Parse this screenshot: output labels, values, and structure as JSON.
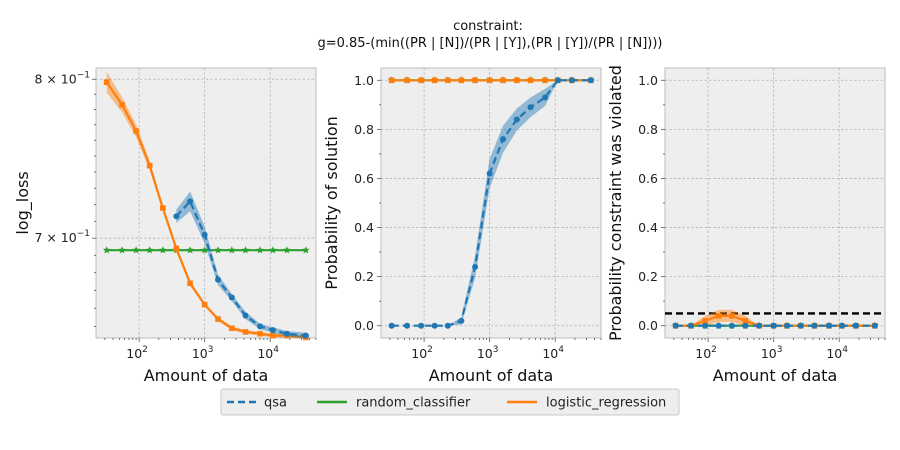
{
  "title_line1": "constraint:",
  "title_line2": "g=0.85-(min((PR | [N])/(PR | [Y]),(PR | [Y])/(PR | [N])))",
  "legend": [
    "qsa",
    "random_classifier",
    "logistic_regression"
  ],
  "colors": {
    "qsa": "#1f77b4",
    "random_classifier": "#2ca02c",
    "logistic_regression": "#ff7f0e",
    "threshold": "#000000"
  },
  "x_ticks": [
    "2",
    "3",
    "4"
  ],
  "x_tick_base": "10",
  "chart_data": [
    {
      "type": "line",
      "xscale": "log",
      "yscale": "log",
      "xlabel": "Amount of data",
      "ylabel": "log_loss",
      "xlim": [
        22,
        50000
      ],
      "ylim": [
        0.6437,
        0.8076
      ],
      "yticks": [
        {
          "value": 0.8,
          "mantissa": "8",
          "base": "10",
          "exp": "−1"
        },
        {
          "value": 0.7,
          "mantissa": "7",
          "base": "10",
          "exp": "−1"
        }
      ],
      "x": [
        32,
        55,
        90,
        145,
        230,
        370,
        600,
        1000,
        1600,
        2600,
        4200,
        7000,
        11000,
        18000,
        35000
      ],
      "series": [
        {
          "name": "qsa",
          "style": "dashed",
          "marker": "circle",
          "values": [
            null,
            null,
            null,
            null,
            null,
            0.713,
            0.722,
            0.702,
            0.676,
            0.666,
            0.656,
            0.65,
            0.648,
            0.646,
            0.645
          ],
          "band": [
            null,
            null,
            null,
            null,
            null,
            0.004,
            0.006,
            0.005,
            0.003,
            0.002,
            0.002,
            0.0015,
            0.0015,
            0.0015,
            0.0015
          ]
        },
        {
          "name": "random_classifier",
          "style": "solid",
          "marker": "star",
          "values": [
            0.693,
            0.693,
            0.693,
            0.693,
            0.693,
            0.693,
            0.693,
            0.693,
            0.693,
            0.693,
            0.693,
            0.693,
            0.693,
            0.693,
            0.693
          ],
          "band": [
            0,
            0,
            0,
            0,
            0,
            0,
            0,
            0,
            0,
            0,
            0,
            0,
            0,
            0,
            0
          ]
        },
        {
          "name": "logistic_regression",
          "style": "solid",
          "marker": "square",
          "values": [
            0.798,
            0.783,
            0.766,
            0.744,
            0.718,
            0.694,
            0.674,
            0.662,
            0.654,
            0.649,
            0.647,
            0.646,
            0.645,
            0.645,
            0.644
          ],
          "band": [
            0.007,
            0.005,
            0.004,
            0.003,
            0.002,
            0.002,
            0.0015,
            0.001,
            0.001,
            0.001,
            0.001,
            0.001,
            0.001,
            0.001,
            0.001
          ]
        }
      ]
    },
    {
      "type": "line",
      "xscale": "log",
      "yscale": "linear",
      "xlabel": "Amount of data",
      "ylabel": "Probability of solution",
      "xlim": [
        22,
        50000
      ],
      "ylim": [
        -0.05,
        1.05
      ],
      "yticks": [
        0.0,
        0.2,
        0.4,
        0.6,
        0.8,
        1.0
      ],
      "ytick_labels": [
        "0.0",
        "0.2",
        "0.4",
        "0.6",
        "0.8",
        "1.0"
      ],
      "x": [
        32,
        55,
        90,
        145,
        230,
        370,
        600,
        1000,
        1600,
        2600,
        4200,
        7000,
        11000,
        18000,
        35000
      ],
      "series": [
        {
          "name": "qsa",
          "style": "dashed",
          "marker": "circle",
          "values": [
            0.0,
            0.0,
            0.0,
            0.0,
            0.0,
            0.02,
            0.24,
            0.62,
            0.76,
            0.84,
            0.89,
            0.93,
            1.0,
            1.0,
            1.0
          ],
          "band": [
            0,
            0,
            0,
            0,
            0,
            0.015,
            0.045,
            0.06,
            0.055,
            0.045,
            0.04,
            0.035,
            0,
            0,
            0
          ]
        },
        {
          "name": "random_classifier",
          "style": "solid",
          "marker": "star",
          "values": [
            1,
            1,
            1,
            1,
            1,
            1,
            1,
            1,
            1,
            1,
            1,
            1,
            1,
            1,
            1
          ],
          "band": [
            0,
            0,
            0,
            0,
            0,
            0,
            0,
            0,
            0,
            0,
            0,
            0,
            0,
            0,
            0
          ]
        },
        {
          "name": "logistic_regression",
          "style": "solid",
          "marker": "square",
          "values": [
            1,
            1,
            1,
            1,
            1,
            1,
            1,
            1,
            1,
            1,
            1,
            1,
            1,
            1,
            1
          ],
          "band": [
            0,
            0,
            0,
            0,
            0,
            0,
            0,
            0,
            0,
            0,
            0,
            0,
            0,
            0,
            0
          ]
        }
      ]
    },
    {
      "type": "line",
      "xscale": "log",
      "yscale": "linear",
      "xlabel": "Amount of data",
      "ylabel": "Probability constraint was violated",
      "xlim": [
        22,
        50000
      ],
      "ylim": [
        -0.05,
        1.05
      ],
      "yticks": [
        0.0,
        0.2,
        0.4,
        0.6,
        0.8,
        1.0
      ],
      "ytick_labels": [
        "0.0",
        "0.2",
        "0.4",
        "0.6",
        "0.8",
        "1.0"
      ],
      "threshold": 0.05,
      "x": [
        32,
        55,
        90,
        145,
        230,
        370,
        600,
        1000,
        1600,
        2600,
        4200,
        7000,
        11000,
        18000,
        35000
      ],
      "series": [
        {
          "name": "qsa",
          "style": "dashed",
          "marker": "circle",
          "values": [
            0,
            0,
            0,
            0,
            0,
            0,
            0,
            0,
            0,
            0,
            0,
            0,
            0,
            0,
            0
          ],
          "band": [
            0,
            0,
            0,
            0,
            0,
            0,
            0,
            0,
            0,
            0,
            0,
            0,
            0,
            0,
            0
          ]
        },
        {
          "name": "random_classifier",
          "style": "solid",
          "marker": "star",
          "values": [
            0,
            0,
            0,
            0,
            0,
            0,
            0,
            0,
            0,
            0,
            0,
            0,
            0,
            0,
            0
          ],
          "band": [
            0,
            0,
            0,
            0,
            0,
            0,
            0,
            0,
            0,
            0,
            0,
            0,
            0,
            0,
            0
          ]
        },
        {
          "name": "logistic_regression",
          "style": "solid",
          "marker": "square",
          "values": [
            0.0,
            0.0,
            0.02,
            0.04,
            0.04,
            0.02,
            0.0,
            0.0,
            0.0,
            0.0,
            0.0,
            0.0,
            0.0,
            0.0,
            0.0
          ],
          "band": [
            0.0,
            0.0,
            0.02,
            0.025,
            0.025,
            0.02,
            0.0,
            0.0,
            0.0,
            0.0,
            0.0,
            0.0,
            0.0,
            0.0,
            0.0
          ]
        }
      ]
    }
  ]
}
